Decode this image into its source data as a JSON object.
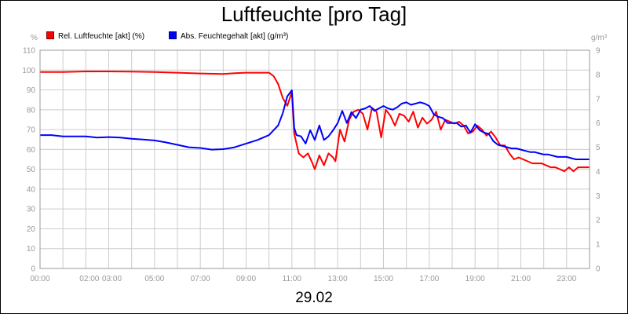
{
  "chart_data": {
    "type": "line",
    "title": "Luftfeuchte [pro Tag]",
    "subtitle": "29.02",
    "y_left": {
      "unit": "%",
      "range": [
        0,
        110
      ],
      "ticks": [
        0,
        10,
        20,
        30,
        40,
        50,
        60,
        70,
        80,
        90,
        100,
        110
      ]
    },
    "y_right": {
      "unit": "g/m³",
      "range": [
        0,
        9
      ],
      "ticks": [
        0,
        1,
        2,
        3,
        4,
        5,
        6,
        7,
        8,
        9
      ]
    },
    "x_range_hours": [
      0,
      24
    ],
    "x_tick_labels": [
      {
        "h": 0,
        "label": "00:00"
      },
      {
        "h": 2,
        "label": "02:00"
      },
      {
        "h": 3,
        "label": "03:00"
      },
      {
        "h": 5,
        "label": "05:00"
      },
      {
        "h": 7,
        "label": "07:00"
      },
      {
        "h": 9,
        "label": "09:00"
      },
      {
        "h": 11,
        "label": "11:00"
      },
      {
        "h": 13,
        "label": "13:00"
      },
      {
        "h": 15,
        "label": "15:00"
      },
      {
        "h": 17,
        "label": "17:00"
      },
      {
        "h": 19,
        "label": "19:00"
      },
      {
        "h": 21,
        "label": "21:00"
      },
      {
        "h": 23,
        "label": "23:00"
      }
    ],
    "grid": true,
    "legend_position": "top-left",
    "series": [
      {
        "name": "Rel. Luftfeuchte [akt] (%)",
        "color": "#ff0000",
        "axis": "left",
        "x": [
          0,
          1,
          2,
          3,
          4,
          5,
          6,
          7,
          8,
          8.5,
          9,
          10,
          10.2,
          10.4,
          10.6,
          10.8,
          11,
          11.1,
          11.3,
          11.5,
          11.7,
          11.9,
          12,
          12.2,
          12.4,
          12.6,
          12.8,
          12.9,
          13.1,
          13.3,
          13.5,
          13.7,
          13.9,
          14.1,
          14.3,
          14.5,
          14.7,
          14.9,
          15.1,
          15.3,
          15.5,
          15.7,
          15.9,
          16.1,
          16.3,
          16.5,
          16.7,
          16.9,
          17.1,
          17.3,
          17.5,
          17.7,
          17.9,
          18.1,
          18.3,
          18.5,
          18.7,
          18.9,
          19.1,
          19.3,
          19.5,
          19.7,
          19.9,
          20.1,
          20.3,
          20.5,
          20.7,
          20.9,
          21.1,
          21.3,
          21.5,
          21.7,
          21.9,
          22.1,
          22.3,
          22.5,
          22.7,
          22.9,
          23.1,
          23.3,
          23.5,
          23.7,
          24
        ],
        "y": [
          99,
          99,
          99.3,
          99.3,
          99.2,
          99,
          98.7,
          98.3,
          98,
          98.4,
          98.7,
          98.7,
          97,
          93,
          86,
          82,
          89,
          68,
          58,
          56,
          58,
          53,
          50,
          57,
          52,
          58,
          56,
          54,
          70,
          64,
          75,
          79,
          80,
          78,
          70,
          81,
          79,
          66,
          80,
          77,
          72,
          78,
          77,
          74,
          79,
          71,
          76,
          73,
          75,
          79,
          70,
          75,
          74,
          73,
          74,
          72,
          68,
          69,
          72,
          70,
          67,
          69,
          66,
          62,
          62,
          58,
          55,
          56,
          55,
          54,
          53,
          53,
          53,
          52,
          51,
          51,
          50,
          49,
          51,
          49,
          51,
          51,
          51
        ]
      },
      {
        "name": "Abs. Feuchtegehalt [akt] (g/m³)",
        "color": "#0000ff",
        "axis": "right",
        "x": [
          0,
          0.5,
          1,
          1.5,
          2,
          2.5,
          3,
          3.5,
          4,
          4.5,
          5,
          5.5,
          6,
          6.5,
          7,
          7.5,
          8,
          8.2,
          8.5,
          9,
          9.5,
          10,
          10.4,
          10.6,
          10.8,
          11,
          11.1,
          11.2,
          11.4,
          11.6,
          11.8,
          12,
          12.2,
          12.4,
          12.6,
          12.8,
          13,
          13.2,
          13.4,
          13.6,
          13.8,
          14,
          14.2,
          14.4,
          14.6,
          14.8,
          15,
          15.2,
          15.4,
          15.6,
          15.8,
          16,
          16.2,
          16.4,
          16.6,
          16.8,
          17,
          17.2,
          17.4,
          17.6,
          17.8,
          18,
          18.2,
          18.4,
          18.6,
          18.8,
          19,
          19.2,
          19.4,
          19.6,
          19.8,
          20,
          20.2,
          20.4,
          20.6,
          20.8,
          21,
          21.2,
          21.4,
          21.6,
          21.8,
          22,
          22.2,
          22.4,
          22.6,
          22.8,
          23,
          23.2,
          23.4,
          23.6,
          23.8,
          24
        ],
        "y": [
          5.5,
          5.5,
          5.45,
          5.45,
          5.45,
          5.4,
          5.42,
          5.4,
          5.35,
          5.32,
          5.28,
          5.2,
          5.1,
          5.0,
          4.97,
          4.9,
          4.92,
          4.95,
          5.0,
          5.15,
          5.3,
          5.5,
          5.9,
          6.4,
          7.1,
          7.35,
          5.8,
          5.5,
          5.45,
          5.15,
          5.7,
          5.3,
          5.9,
          5.3,
          5.45,
          5.7,
          6.0,
          6.5,
          6.0,
          6.45,
          6.2,
          6.55,
          6.6,
          6.7,
          6.5,
          6.6,
          6.7,
          6.6,
          6.55,
          6.65,
          6.8,
          6.85,
          6.75,
          6.8,
          6.85,
          6.8,
          6.7,
          6.35,
          6.25,
          6.2,
          6.0,
          6.0,
          6.0,
          5.85,
          5.9,
          5.6,
          5.95,
          5.7,
          5.6,
          5.55,
          5.25,
          5.1,
          5.05,
          5.0,
          4.95,
          4.95,
          4.9,
          4.85,
          4.8,
          4.8,
          4.75,
          4.7,
          4.7,
          4.65,
          4.6,
          4.6,
          4.6,
          4.55,
          4.5,
          4.5,
          4.5,
          4.5
        ]
      }
    ]
  }
}
